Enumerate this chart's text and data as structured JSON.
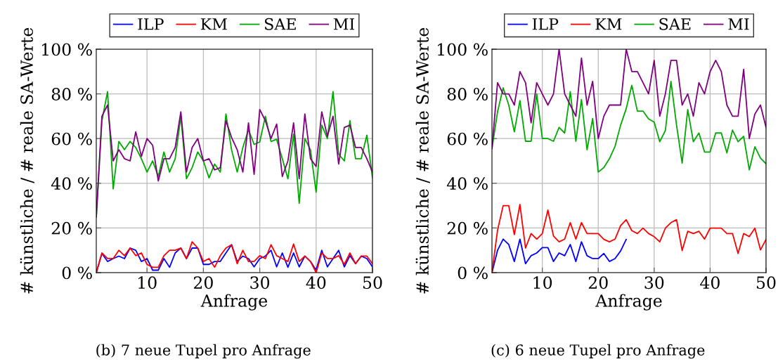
{
  "chart_data": [
    {
      "type": "line",
      "xlabel": "Anfrage",
      "ylabel": "# künstliche / # reale SA-Werte",
      "annotations": [
        "(b) 7 neue Tupel pro Anfrage"
      ],
      "x": [
        1,
        2,
        3,
        4,
        5,
        6,
        7,
        8,
        9,
        10,
        11,
        12,
        13,
        14,
        15,
        16,
        17,
        18,
        19,
        20,
        21,
        22,
        23,
        24,
        25,
        26,
        27,
        28,
        29,
        30,
        31,
        32,
        33,
        34,
        35,
        36,
        37,
        38,
        39,
        40,
        41,
        42,
        43,
        44,
        45,
        46,
        47,
        48,
        49,
        50
      ],
      "series": [
        {
          "name": "ILP",
          "color": "#0000ff",
          "values": [
            0,
            8.6,
            5,
            6.3,
            7.4,
            6.3,
            11,
            10,
            5,
            6.3,
            1.1,
            1.1,
            6.3,
            2.4,
            8.8,
            11,
            6.3,
            11,
            11,
            3.7,
            3.7,
            5,
            5,
            8.8,
            12.5,
            5,
            7.4,
            6.3,
            2.6,
            6.3,
            7.4,
            10,
            2.6,
            8.8,
            2.4,
            8.8,
            2.6,
            7.4,
            5,
            1.1,
            10,
            2.6,
            6.3,
            10,
            2.6,
            7.6,
            4,
            7.4,
            6.3,
            2.6
          ]
        },
        {
          "name": "KM",
          "color": "#ff0000",
          "values": [
            0,
            8.8,
            6.3,
            6.3,
            10,
            7.6,
            11,
            7.6,
            8.8,
            3.7,
            2.4,
            2.4,
            7.6,
            10,
            10,
            11,
            6.3,
            13.8,
            11,
            5,
            6.3,
            2.4,
            7.6,
            11,
            12.5,
            4,
            10,
            5,
            5,
            7.6,
            6.3,
            12.5,
            7.6,
            6.3,
            5,
            12.8,
            5,
            7.4,
            5,
            0,
            8.8,
            6.3,
            6.3,
            7.6,
            3.7,
            8.8,
            4,
            7.4,
            7.4,
            4
          ]
        },
        {
          "name": "SAE",
          "color": "#00aa00",
          "values": [
            25,
            68,
            81,
            37.5,
            58.7,
            55,
            58.7,
            56,
            51,
            45,
            50,
            43,
            54,
            45,
            51,
            70,
            42,
            47,
            54,
            50,
            42.4,
            48.6,
            45,
            71,
            55,
            45,
            56,
            64,
            57.4,
            58.5,
            70,
            58.7,
            59.7,
            51,
            42,
            62,
            31,
            60,
            55,
            36,
            66,
            60,
            81,
            53,
            50,
            68,
            51,
            51,
            61.5,
            42.4
          ]
        },
        {
          "name": "MI",
          "color": "#800080",
          "values": [
            25,
            70,
            75,
            50,
            55,
            51,
            50,
            63,
            52,
            60,
            57,
            41,
            51,
            51,
            56,
            72,
            45,
            56,
            60,
            50,
            51,
            46,
            47,
            68,
            60.5,
            55,
            45,
            67,
            44,
            73,
            68,
            60,
            66.5,
            43,
            50,
            67,
            42,
            71,
            51,
            47.5,
            72,
            61,
            70,
            48.6,
            65,
            66,
            56,
            56,
            51,
            45
          ]
        }
      ],
      "xlim": [
        1,
        50
      ],
      "xticks": [
        10,
        20,
        30,
        40,
        50
      ],
      "ylim": [
        0,
        100
      ],
      "yticks": [
        {
          "value": 0,
          "label": "0 %"
        },
        {
          "value": 20,
          "label": "20 %"
        },
        {
          "value": 40,
          "label": "40 %"
        },
        {
          "value": 60,
          "label": "60 %"
        },
        {
          "value": 80,
          "label": "80 %"
        },
        {
          "value": 100,
          "label": "100 %"
        }
      ],
      "grid": true,
      "legend": "top",
      "marker": "none",
      "line_style": "solid"
    },
    {
      "type": "line",
      "xlabel": "Anfrage",
      "ylabel": "# künstliche / # reale SA-Werte",
      "annotations": [
        "(c) 6 neue Tupel pro Anfrage"
      ],
      "x": [
        1,
        2,
        3,
        4,
        5,
        6,
        7,
        8,
        9,
        10,
        11,
        12,
        13,
        14,
        15,
        16,
        17,
        18,
        19,
        20,
        21,
        22,
        23,
        24,
        25,
        26,
        27,
        28,
        29,
        30,
        31,
        32,
        33,
        34,
        35,
        36,
        37,
        38,
        39,
        40,
        41,
        42,
        43,
        44,
        45,
        46,
        47,
        48,
        49,
        50
      ],
      "series": [
        {
          "name": "ILP",
          "color": "#0000ff",
          "values": [
            0,
            10,
            15,
            12.6,
            5,
            15,
            4,
            7.6,
            8.8,
            11.2,
            11.2,
            5,
            8.8,
            7.6,
            12.6,
            5,
            13.8,
            7.6,
            6.3,
            6.3,
            8.6,
            5,
            6.3,
            9.7,
            14.9,
            null,
            null,
            null,
            null,
            null,
            null,
            null,
            null,
            null,
            null,
            null,
            null,
            null,
            null,
            null,
            null,
            null,
            null,
            null,
            null,
            null,
            null,
            null,
            null,
            null
          ]
        },
        {
          "name": "KM",
          "color": "#ff0000",
          "values": [
            0,
            19,
            30,
            30,
            17,
            30.5,
            11,
            17.5,
            15,
            17.5,
            28,
            16.4,
            13.8,
            15,
            22.4,
            15,
            22.4,
            17.5,
            17.5,
            17.5,
            14.9,
            13.8,
            15,
            21,
            23.7,
            18.8,
            17.5,
            19.9,
            17.5,
            16.1,
            13.8,
            19.9,
            22.4,
            23.7,
            9.9,
            18.5,
            17.5,
            18.5,
            15,
            19.9,
            19.9,
            19.9,
            17.5,
            17.5,
            8.6,
            17.5,
            16.1,
            19.9,
            10.2,
            14.9
          ]
        },
        {
          "name": "SAE",
          "color": "#00aa00",
          "values": [
            55.5,
            72,
            82.7,
            75,
            63,
            77,
            58.8,
            58.8,
            80,
            60,
            60,
            58.8,
            65,
            62.5,
            81,
            58.8,
            77.5,
            55,
            69,
            45,
            47,
            51,
            56.5,
            66,
            73.4,
            83.8,
            72.3,
            72.3,
            68.8,
            67.4,
            58.6,
            63.6,
            85.6,
            66,
            49,
            73,
            58.6,
            62.5,
            54,
            54,
            62.5,
            62.5,
            53.6,
            63.8,
            58.6,
            61,
            46,
            56.3,
            51.3,
            48.7
          ]
        },
        {
          "name": "MI",
          "color": "#800080",
          "values": [
            55.5,
            85,
            80,
            80,
            75,
            90,
            85,
            67,
            85,
            80,
            75,
            80,
            100,
            80,
            75,
            70,
            96,
            75,
            85.6,
            60,
            70,
            75,
            75,
            75,
            100,
            90,
            90,
            85,
            80,
            95,
            70,
            80,
            95,
            95,
            75,
            80,
            70,
            85,
            80,
            90,
            95,
            90,
            75,
            70,
            70,
            91,
            60,
            71,
            75,
            65
          ]
        }
      ],
      "xlim": [
        1,
        50
      ],
      "xticks": [
        10,
        20,
        30,
        40,
        50
      ],
      "ylim": [
        0,
        100
      ],
      "yticks": [
        {
          "value": 0,
          "label": "0 %"
        },
        {
          "value": 20,
          "label": "20 %"
        },
        {
          "value": 40,
          "label": "40 %"
        },
        {
          "value": 60,
          "label": "60 %"
        },
        {
          "value": 80,
          "label": "80 %"
        },
        {
          "value": 100,
          "label": "100 %"
        }
      ],
      "grid": true,
      "legend": "top",
      "marker": "none",
      "line_style": "solid"
    }
  ]
}
